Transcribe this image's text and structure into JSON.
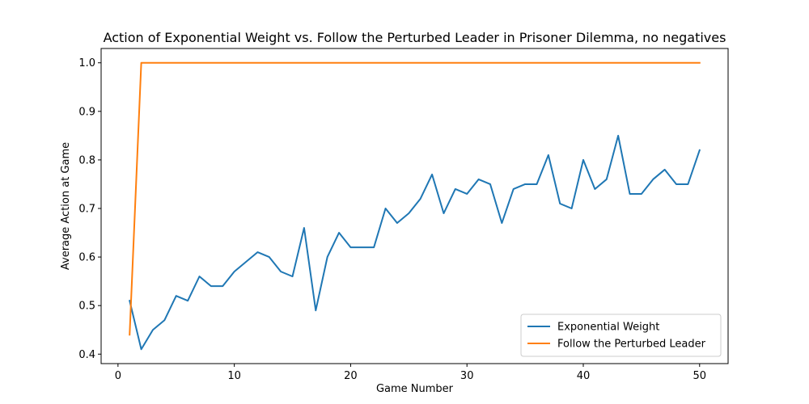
{
  "chart_data": {
    "type": "line",
    "title": "Action of Exponential Weight vs. Follow the Perturbed Leader in Prisoner Dilemma, no negatives",
    "xlabel": "Game Number",
    "ylabel": "Average Action at Game",
    "xlim": [
      -1.45,
      52.45
    ],
    "ylim": [
      0.3805,
      1.0295
    ],
    "xticks": [
      0,
      10,
      20,
      30,
      40,
      50
    ],
    "xtick_labels": [
      "0",
      "10",
      "20",
      "30",
      "40",
      "50"
    ],
    "yticks": [
      0.4,
      0.5,
      0.6,
      0.7,
      0.8,
      0.9,
      1.0
    ],
    "ytick_labels": [
      "0.4",
      "0.5",
      "0.6",
      "0.7",
      "0.8",
      "0.9",
      "1.0"
    ],
    "grid": false,
    "legend_position": "bottom-right",
    "x": [
      1,
      2,
      3,
      4,
      5,
      6,
      7,
      8,
      9,
      10,
      11,
      12,
      13,
      14,
      15,
      16,
      17,
      18,
      19,
      20,
      21,
      22,
      23,
      24,
      25,
      26,
      27,
      28,
      29,
      30,
      31,
      32,
      33,
      34,
      35,
      36,
      37,
      38,
      39,
      40,
      41,
      42,
      43,
      44,
      45,
      46,
      47,
      48,
      49,
      50
    ],
    "series": [
      {
        "name": "Exponential Weight",
        "color": "#1f77b4",
        "values": [
          0.51,
          0.41,
          0.45,
          0.47,
          0.52,
          0.51,
          0.56,
          0.54,
          0.54,
          0.57,
          0.59,
          0.61,
          0.6,
          0.57,
          0.56,
          0.66,
          0.49,
          0.6,
          0.65,
          0.62,
          0.62,
          0.62,
          0.7,
          0.67,
          0.69,
          0.72,
          0.77,
          0.69,
          0.74,
          0.73,
          0.76,
          0.75,
          0.67,
          0.74,
          0.75,
          0.75,
          0.81,
          0.71,
          0.7,
          0.8,
          0.74,
          0.76,
          0.85,
          0.73,
          0.73,
          0.76,
          0.78,
          0.75,
          0.75,
          0.82
        ]
      },
      {
        "name": "Follow the Perturbed Leader",
        "color": "#ff7f0e",
        "values": [
          0.44,
          1.0,
          1.0,
          1.0,
          1.0,
          1.0,
          1.0,
          1.0,
          1.0,
          1.0,
          1.0,
          1.0,
          1.0,
          1.0,
          1.0,
          1.0,
          1.0,
          1.0,
          1.0,
          1.0,
          1.0,
          1.0,
          1.0,
          1.0,
          1.0,
          1.0,
          1.0,
          1.0,
          1.0,
          1.0,
          1.0,
          1.0,
          1.0,
          1.0,
          1.0,
          1.0,
          1.0,
          1.0,
          1.0,
          1.0,
          1.0,
          1.0,
          1.0,
          1.0,
          1.0,
          1.0,
          1.0,
          1.0,
          1.0,
          1.0
        ]
      }
    ]
  }
}
